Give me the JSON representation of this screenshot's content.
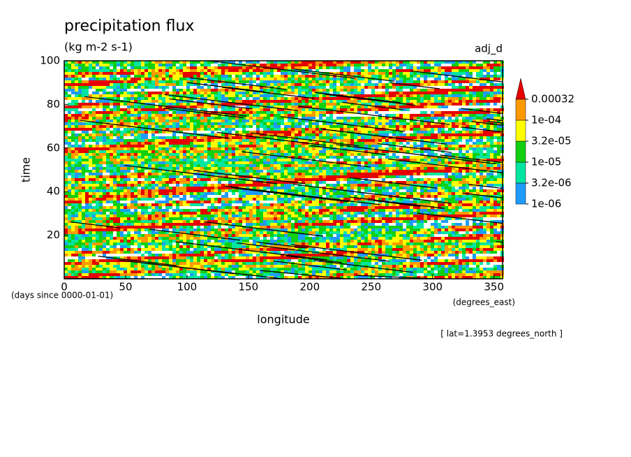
{
  "chart_data": {
    "type": "contour",
    "title": "precipitation flux",
    "subtitle": "(kg m-2 s-1)",
    "annotation": "adj_d",
    "xlabel": "longitude",
    "xunits": "(degrees_east)",
    "ylabel": "time",
    "yunits": "(days since 0000-01-01)",
    "footnote": "[ lat=1.3953 degrees_north ]",
    "xlim": [
      0,
      357
    ],
    "xticks": [
      0,
      50,
      100,
      150,
      200,
      250,
      300,
      350
    ],
    "ylim": [
      0,
      100
    ],
    "yticks": [
      20,
      40,
      60,
      80,
      100
    ],
    "levels": [
      {
        "value": 1e-06,
        "label": "1e-06"
      },
      {
        "value": 3.2e-06,
        "label": "3.2e-06"
      },
      {
        "value": 1e-05,
        "label": "1e-05"
      },
      {
        "value": 3.2e-05,
        "label": "3.2e-05"
      },
      {
        "value": 0.0001,
        "label": "1e-04"
      },
      0.00032
    ],
    "level_colors": [
      "#1e9bff",
      "#00e6a0",
      "#10d010",
      "#ffff00",
      "#ff9900",
      "#e60000"
    ],
    "contour_color": "#000000"
  }
}
